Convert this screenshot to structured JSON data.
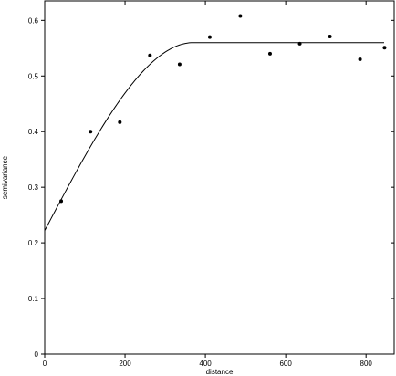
{
  "chart_data": {
    "type": "scatter",
    "title": "",
    "xlabel": "distance",
    "ylabel": "semivariance",
    "xlim": [
      0,
      870
    ],
    "ylim": [
      0,
      0.635
    ],
    "x_ticks": [
      0,
      200,
      400,
      600,
      800
    ],
    "y_ticks": [
      0,
      0.1,
      0.2,
      0.3,
      0.4,
      0.5,
      0.6
    ],
    "grid": false,
    "legend": "none",
    "series": [
      {
        "type": "scatter",
        "x": [
          41,
          114,
          187,
          262,
          336,
          411,
          487,
          561,
          635,
          710,
          785,
          846
        ],
        "y": [
          0.275,
          0.4,
          0.417,
          0.537,
          0.521,
          0.57,
          0.608,
          0.54,
          0.558,
          0.571,
          0.53,
          0.551
        ]
      },
      {
        "type": "line",
        "model": "spherical",
        "nugget": 0.222,
        "sill": 0.56,
        "range": 370
      }
    ]
  }
}
